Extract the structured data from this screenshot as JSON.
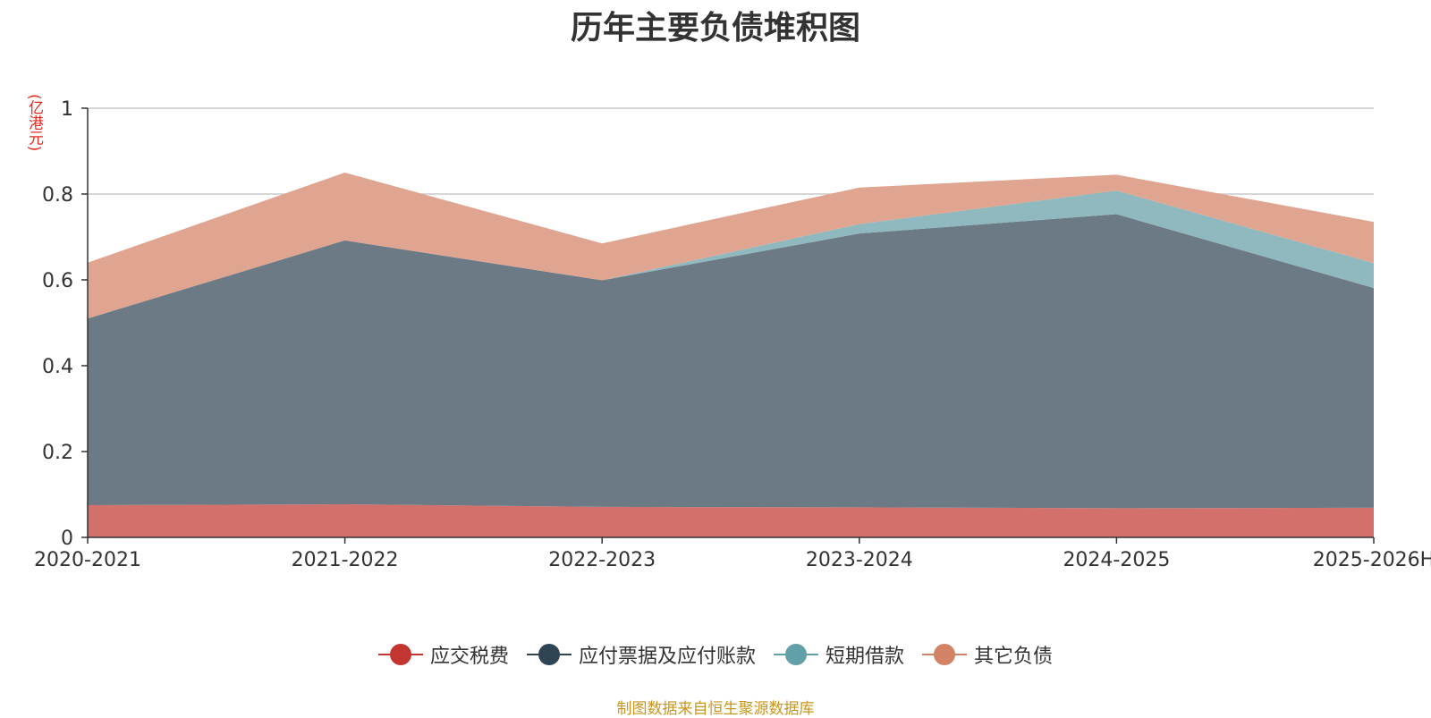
{
  "chart_data": {
    "type": "area",
    "stacked": true,
    "title": "历年主要负债堆积图",
    "ylabel": "(亿港元)",
    "categories": [
      "2020-2021",
      "2021-2022",
      "2022-2023",
      "2023-2024",
      "2024-2025",
      "2025-2026H"
    ],
    "ylim": [
      0,
      1
    ],
    "yticks": [
      "0",
      "0.2",
      "0.4",
      "0.6",
      "0.8",
      "1"
    ],
    "grid": true,
    "legend_position": "bottom",
    "series": [
      {
        "name": "应交税费",
        "values": [
          0.075,
          0.077,
          0.071,
          0.07,
          0.068,
          0.069
        ],
        "color": "#c23531",
        "fill": "#d4706c"
      },
      {
        "name": "应付票据及应付账款",
        "values": [
          0.435,
          0.615,
          0.528,
          0.638,
          0.685,
          0.512
        ],
        "color": "#2f4554",
        "fill": "#6c7a85"
      },
      {
        "name": "短期借款",
        "values": [
          0.0,
          0.0,
          0.0,
          0.022,
          0.055,
          0.058
        ],
        "color": "#61a0a8",
        "fill": "#8fb9bf"
      },
      {
        "name": "其它负债",
        "values": [
          0.13,
          0.158,
          0.086,
          0.085,
          0.037,
          0.096
        ],
        "color": "#d48265",
        "fill": "#e0a590"
      }
    ]
  },
  "source_note": "制图数据来自恒生聚源数据库"
}
